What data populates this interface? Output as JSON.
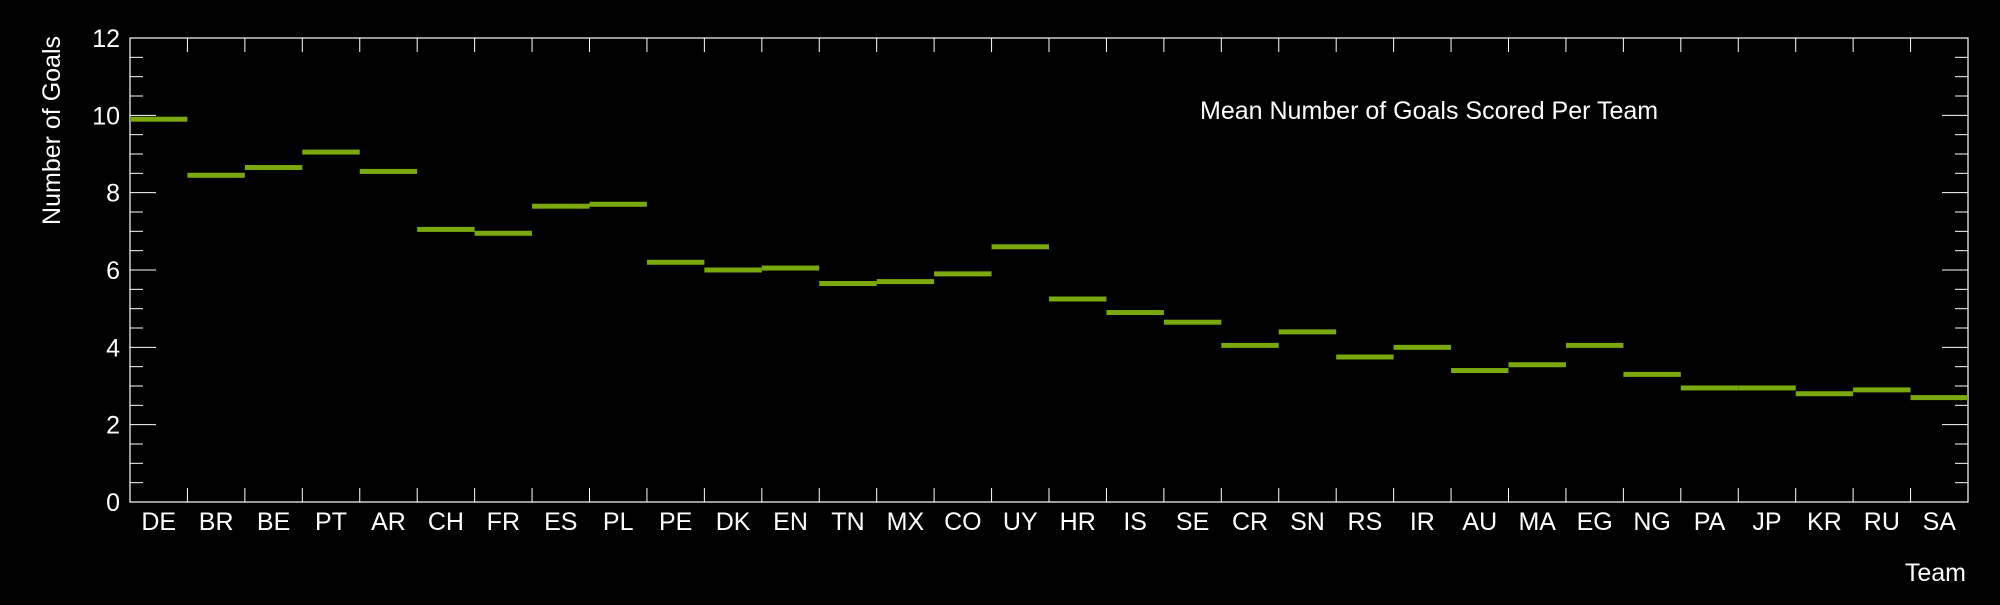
{
  "chart_data": {
    "type": "bar",
    "legend_text": "Mean Number of Goals Scored Per Team",
    "xlabel": "Team",
    "ylabel": "Number of Goals",
    "ylim": [
      0,
      12
    ],
    "y_ticks": [
      "0",
      "2",
      "4",
      "6",
      "8",
      "10",
      "12"
    ],
    "categories": [
      "DE",
      "BR",
      "BE",
      "PT",
      "AR",
      "CH",
      "FR",
      "ES",
      "PL",
      "PE",
      "DK",
      "EN",
      "TN",
      "MX",
      "CO",
      "UY",
      "HR",
      "IS",
      "SE",
      "CR",
      "SN",
      "RS",
      "IR",
      "AU",
      "MA",
      "EG",
      "NG",
      "PA",
      "JP",
      "KR",
      "RU",
      "SA"
    ],
    "values": [
      9.9,
      8.45,
      8.65,
      9.05,
      8.55,
      7.05,
      6.95,
      7.65,
      7.7,
      6.2,
      6.0,
      6.05,
      5.65,
      5.7,
      5.9,
      6.6,
      5.25,
      4.9,
      4.65,
      4.05,
      4.4,
      3.75,
      4.0,
      3.4,
      3.55,
      4.05,
      3.3,
      2.95,
      2.95,
      2.8,
      2.9,
      2.7
    ],
    "colors": {
      "background": "#000000",
      "axis": "#ffffff",
      "text": "#ffffff",
      "marker": "#7aa80e"
    }
  }
}
